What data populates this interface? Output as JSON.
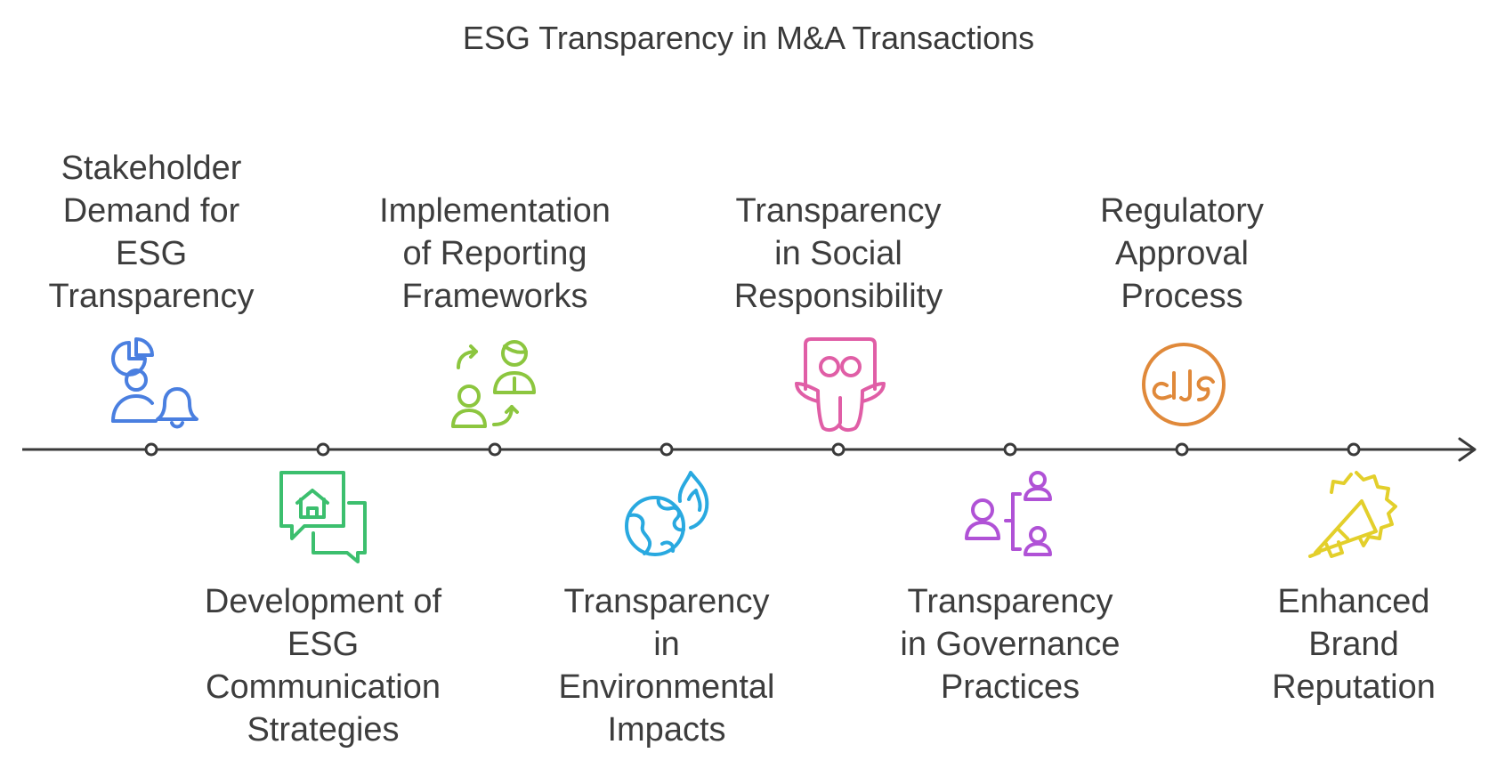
{
  "title": "ESG Transparency in M&A Transactions",
  "stages": [
    {
      "label": "Stakeholder\nDemand for\nESG\nTransparency",
      "icon": "stakeholder-pie-bell-icon",
      "color": "#4a7fe0",
      "side": "above"
    },
    {
      "label": "Development of\nESG\nCommunication\nStrategies",
      "icon": "chat-home-icon",
      "color": "#3cbf6e",
      "side": "below"
    },
    {
      "label": "Implementation\nof Reporting\nFrameworks",
      "icon": "user-switch-icon",
      "color": "#8cc63f",
      "side": "above"
    },
    {
      "label": "Transparency\nin\nEnvironmental\nImpacts",
      "icon": "globe-fire-icon",
      "color": "#29a9e0",
      "side": "below"
    },
    {
      "label": "Transparency\nin Social\nResponsibility",
      "icon": "social-mask-icon",
      "color": "#e05ea6",
      "side": "above"
    },
    {
      "label": "Transparency\nin Governance\nPractices",
      "icon": "org-hierarchy-icon",
      "color": "#b052d6",
      "side": "below"
    },
    {
      "label": "Regulatory\nApproval\nProcess",
      "icon": "halal-seal-icon",
      "color": "#e0893a",
      "side": "above"
    },
    {
      "label": "Enhanced\nBrand\nReputation",
      "icon": "megaphone-badge-icon",
      "color": "#e3cf2b",
      "side": "below"
    }
  ],
  "line_color": "#3a3a3a"
}
